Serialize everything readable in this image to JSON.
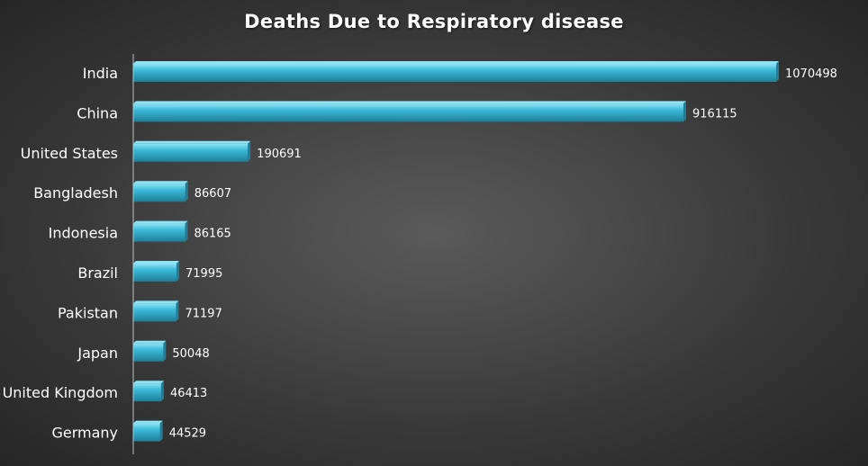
{
  "chart_data": {
    "type": "bar",
    "orientation": "horizontal",
    "title": "Deaths Due to Respiratory disease",
    "categories": [
      "India",
      "China",
      "United States",
      "Bangladesh",
      "Indonesia",
      "Brazil",
      "Pakistan",
      "Japan",
      "United Kingdom",
      "Germany"
    ],
    "values": [
      1070498,
      916115,
      190691,
      86607,
      86165,
      71995,
      71197,
      50048,
      46413,
      44529
    ],
    "data_labels": [
      "1070498",
      "916115",
      "190691",
      "86607",
      "86165",
      "71995",
      "71197",
      "50048",
      "46413",
      "44529"
    ],
    "xlim": [
      0,
      1070498
    ],
    "grid": false,
    "legend": "none",
    "colors": {
      "bar": "#3bbad8",
      "bar_light": "#8fe3f4",
      "bar_dark": "#1d7f99",
      "text": "#ffffff",
      "axis": "#bfbfbf"
    }
  }
}
